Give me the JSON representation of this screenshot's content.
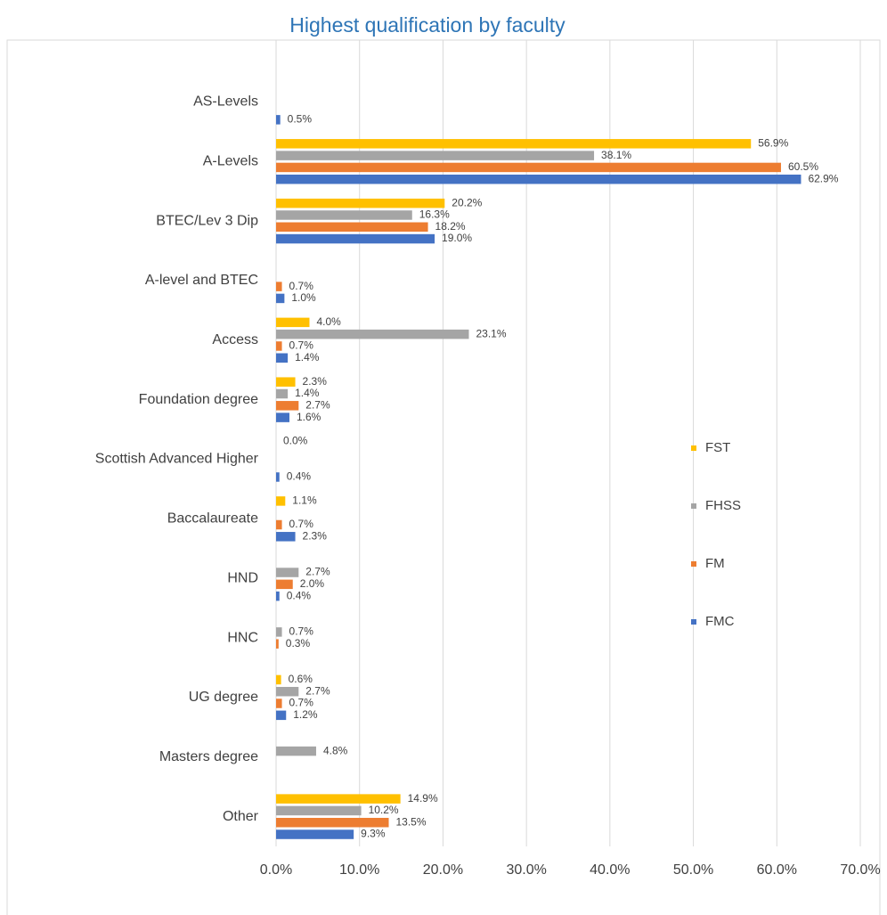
{
  "chart_data": {
    "type": "bar",
    "orientation": "horizontal",
    "title": "Highest qualification by faculty",
    "categories": [
      "AS-Levels",
      "A-Levels",
      "BTEC/Lev 3 Dip",
      "A-level and BTEC",
      "Access",
      "Foundation degree",
      "Scottish Advanced Higher",
      "Baccalaureate",
      "HND",
      "HNC",
      "UG degree",
      "Masters degree",
      "Other"
    ],
    "series": [
      {
        "name": "FST",
        "color": "#ffc000",
        "values": [
          null,
          56.9,
          20.2,
          null,
          4.0,
          2.3,
          0.0,
          1.1,
          null,
          null,
          0.6,
          null,
          14.9
        ],
        "value_labels": [
          null,
          "56.9%",
          "20.2%",
          null,
          "4.0%",
          "2.3%",
          "0.0%",
          "1.1%",
          null,
          null,
          "0.6%",
          null,
          "14.9%"
        ]
      },
      {
        "name": "FHSS",
        "color": "#a5a5a5",
        "values": [
          null,
          38.1,
          16.3,
          null,
          23.1,
          1.4,
          null,
          null,
          2.7,
          0.7,
          2.7,
          4.8,
          10.2
        ],
        "value_labels": [
          null,
          "38.1%",
          "16.3%",
          null,
          "23.1%",
          "1.4%",
          null,
          null,
          "2.7%",
          "0.7%",
          "2.7%",
          "4.8%",
          "10.2%"
        ]
      },
      {
        "name": "FM",
        "color": "#ed7d31",
        "values": [
          null,
          60.5,
          18.2,
          0.7,
          0.7,
          2.7,
          null,
          0.7,
          2.0,
          0.3,
          0.7,
          null,
          13.5
        ],
        "value_labels": [
          null,
          "60.5%",
          "18.2%",
          "0.7%",
          "0.7%",
          "2.7%",
          null,
          "0.7%",
          "2.0%",
          "0.3%",
          "0.7%",
          null,
          "13.5%"
        ]
      },
      {
        "name": "FMC",
        "color": "#4472c4",
        "values": [
          0.5,
          62.9,
          19.0,
          1.0,
          1.4,
          1.6,
          0.4,
          2.3,
          0.4,
          null,
          1.2,
          null,
          9.3
        ],
        "value_labels": [
          "0.5%",
          "62.9%",
          "19.0%",
          "1.0%",
          "1.4%",
          "1.6%",
          "0.4%",
          "2.3%",
          "0.4%",
          null,
          "1.2%",
          null,
          "9.3%"
        ]
      }
    ],
    "xlim": [
      0,
      70
    ],
    "xticks": [
      {
        "value": 0,
        "label": "0.0%"
      },
      {
        "value": 10,
        "label": "10.0%"
      },
      {
        "value": 20,
        "label": "20.0%"
      },
      {
        "value": 30,
        "label": "30.0%"
      },
      {
        "value": 40,
        "label": "40.0%"
      },
      {
        "value": 50,
        "label": "50.0%"
      },
      {
        "value": 60,
        "label": "60.0%"
      },
      {
        "value": 70,
        "label": "70.0%"
      }
    ],
    "grid": true,
    "legend": "right"
  }
}
